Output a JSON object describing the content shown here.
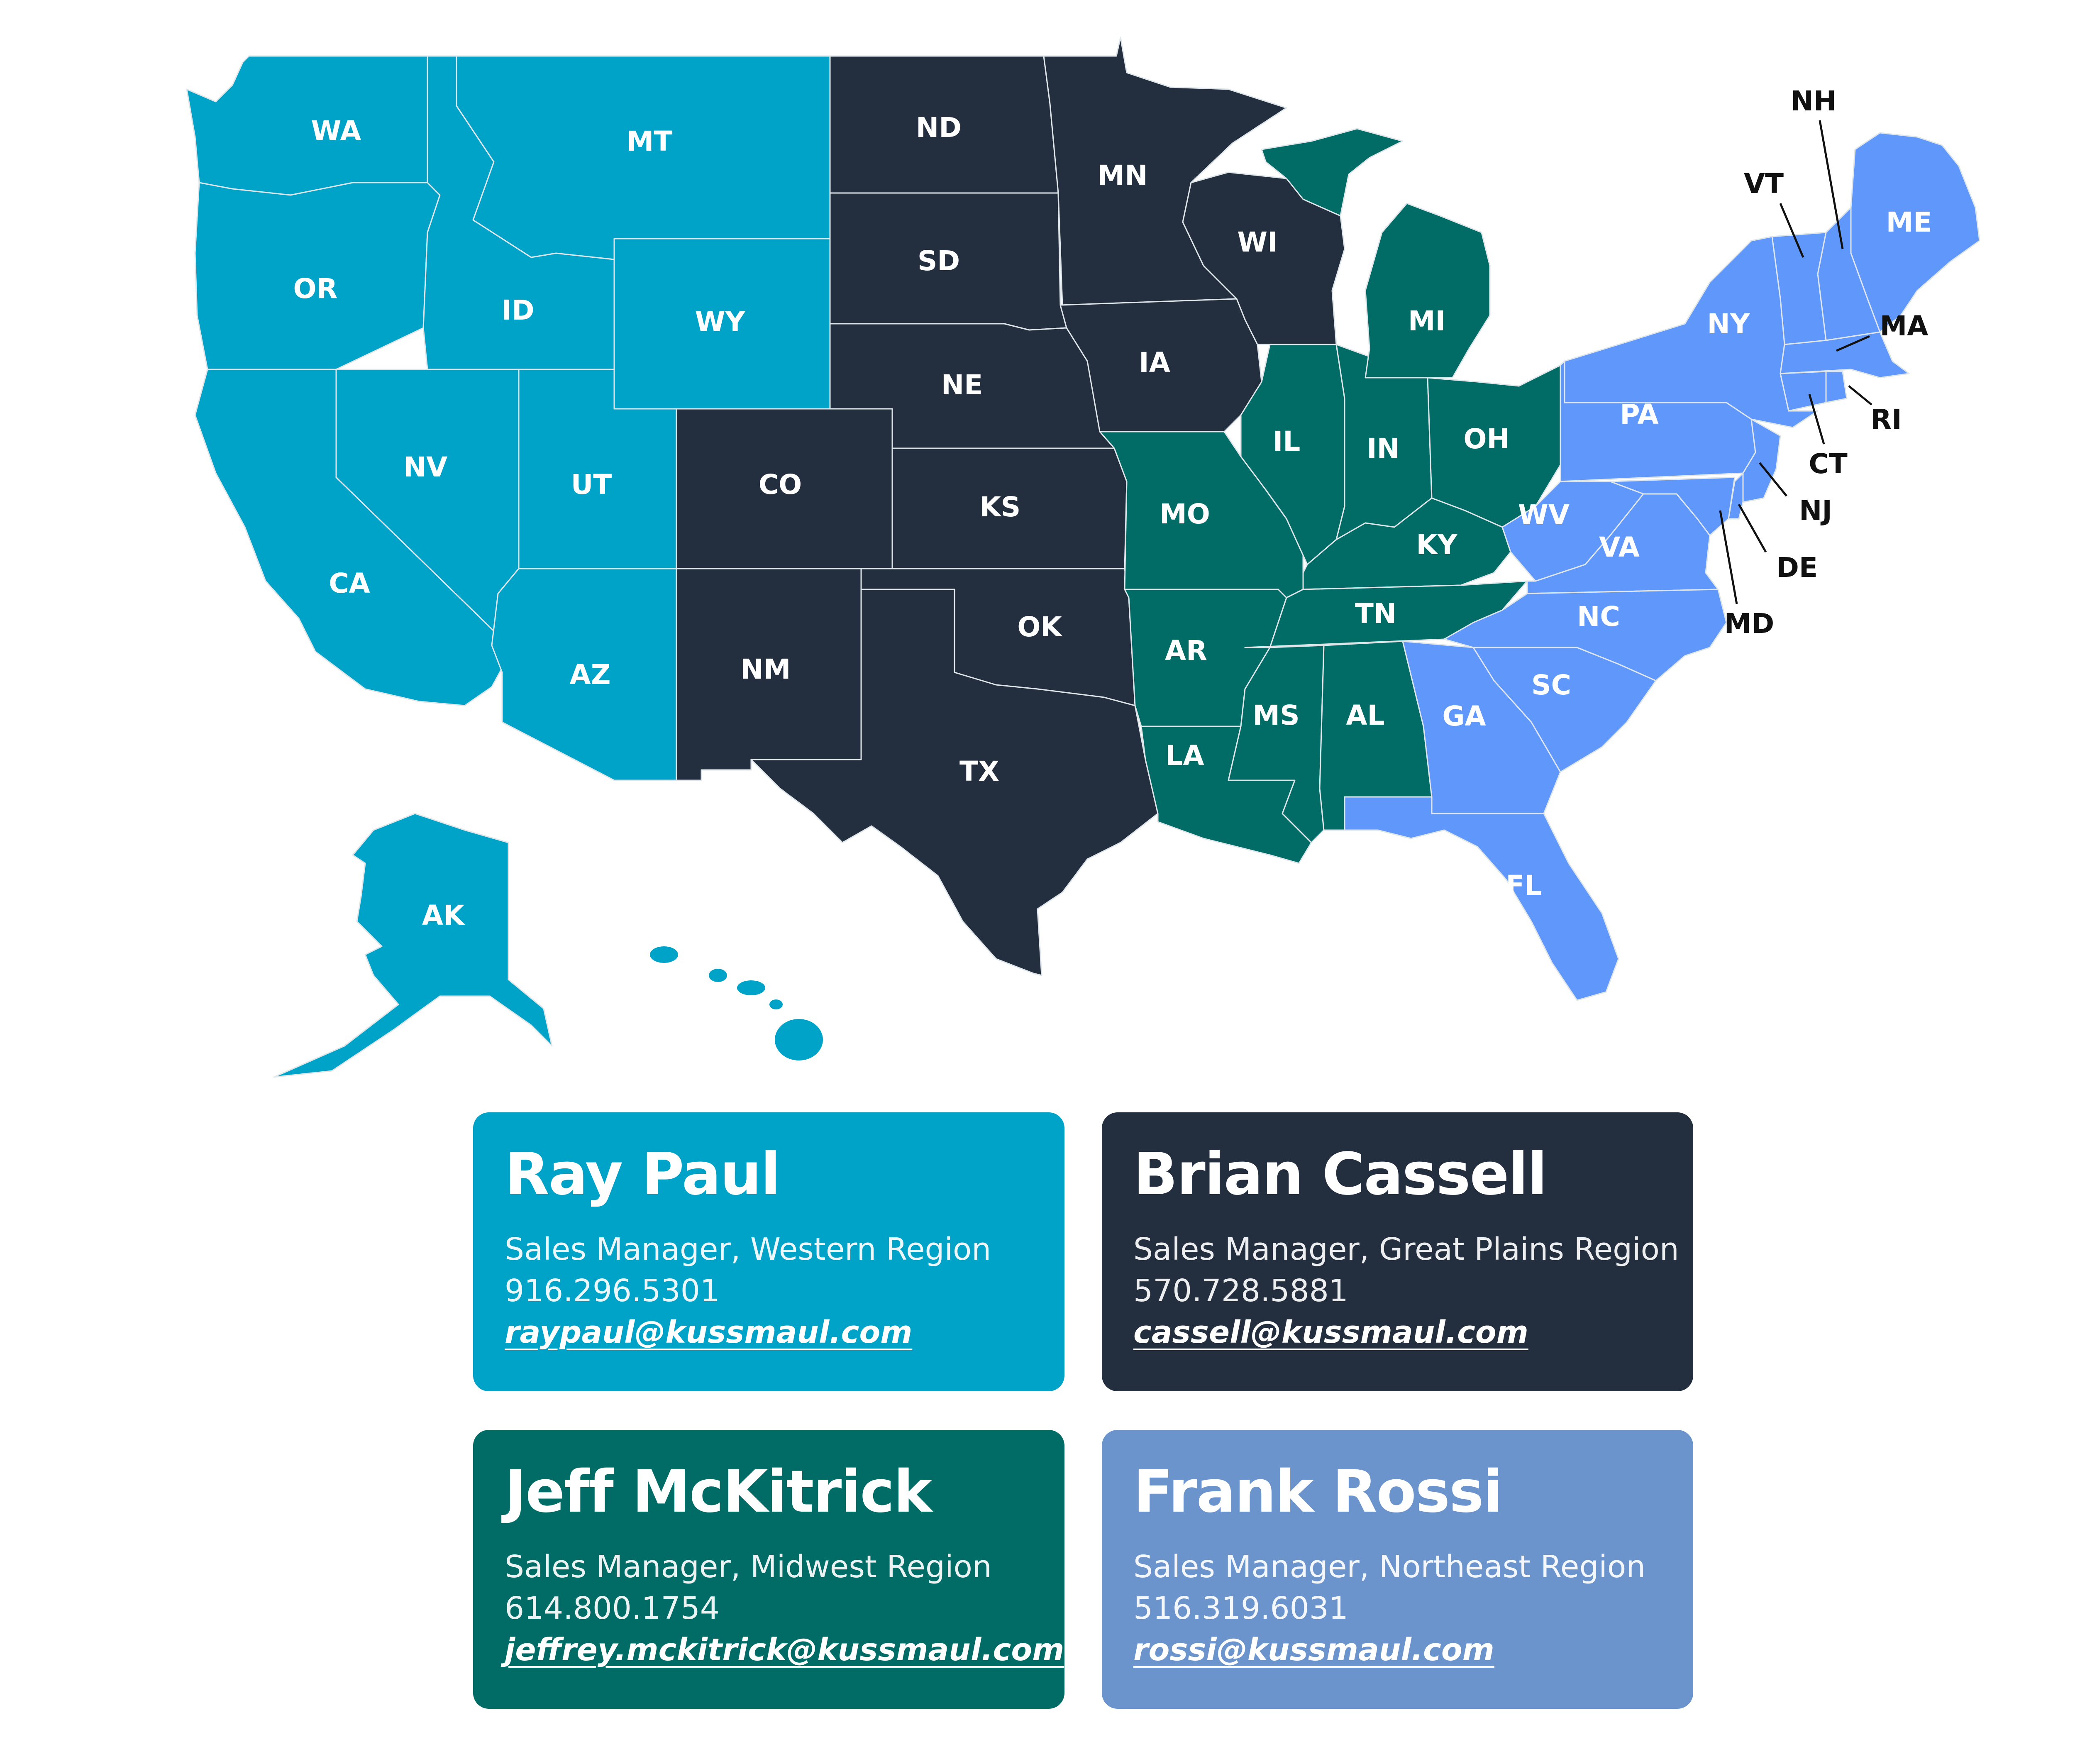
{
  "colors": {
    "western": "#00a3c8",
    "great_plains": "#232e3e",
    "midwest": "#016b66",
    "northeast": "#5f97fb",
    "northeast_card": "#6b94cc",
    "border": "#dfe6ea"
  },
  "map": {
    "regions": {
      "western": [
        "WA",
        "OR",
        "CA",
        "ID",
        "NV",
        "MT",
        "WY",
        "UT",
        "AZ",
        "AK",
        "HI"
      ],
      "great_plains": [
        "ND",
        "SD",
        "NE",
        "KS",
        "CO",
        "NM",
        "OK",
        "TX",
        "MN",
        "IA",
        "WI"
      ],
      "midwest": [
        "MO",
        "AR",
        "LA",
        "IL",
        "IN",
        "OH",
        "MI",
        "KY",
        "TN",
        "MS",
        "AL"
      ],
      "northeast": [
        "ME",
        "NH",
        "VT",
        "MA",
        "RI",
        "CT",
        "NY",
        "NJ",
        "PA",
        "DE",
        "MD",
        "WV",
        "VA",
        "NC",
        "SC",
        "GA",
        "FL"
      ]
    },
    "labels": {
      "WA": "WA",
      "OR": "OR",
      "CA": "CA",
      "ID": "ID",
      "NV": "NV",
      "MT": "MT",
      "WY": "WY",
      "UT": "UT",
      "AZ": "AZ",
      "AK": "AK",
      "ND": "ND",
      "SD": "SD",
      "NE": "NE",
      "KS": "KS",
      "CO": "CO",
      "NM": "NM",
      "OK": "OK",
      "TX": "TX",
      "MN": "MN",
      "IA": "IA",
      "WI": "WI",
      "MO": "MO",
      "AR": "AR",
      "LA": "LA",
      "IL": "IL",
      "IN": "IN",
      "OH": "OH",
      "MI": "MI",
      "KY": "KY",
      "TN": "TN",
      "MS": "MS",
      "AL": "AL",
      "ME": "ME",
      "NY": "NY",
      "PA": "PA",
      "WV": "WV",
      "VA": "VA",
      "NC": "NC",
      "SC": "SC",
      "GA": "GA",
      "FL": "FL",
      "NH": "NH",
      "VT": "VT",
      "MA": "MA",
      "RI": "RI",
      "CT": "CT",
      "NJ": "NJ",
      "DE": "DE",
      "MD": "MD"
    }
  },
  "contacts": [
    {
      "name": "Ray Paul",
      "title": "Sales Manager, Western Region",
      "phone": "916.296.5301",
      "email": "raypaul@kussmaul.com",
      "color": "#00a3c8"
    },
    {
      "name": "Brian Cassell",
      "title": "Sales Manager, Great Plains Region",
      "phone": "570.728.5881",
      "email": "cassell@kussmaul.com",
      "color": "#232e3e"
    },
    {
      "name": "Jeff McKitrick",
      "title": "Sales Manager, Midwest Region",
      "phone": "614.800.1754",
      "email": "jeffrey.mckitrick@kussmaul.com",
      "color": "#016b66"
    },
    {
      "name": "Frank Rossi",
      "title": "Sales Manager, Northeast Region",
      "phone": "516.319.6031",
      "email": "rossi@kussmaul.com",
      "color": "#6b94cc"
    }
  ]
}
